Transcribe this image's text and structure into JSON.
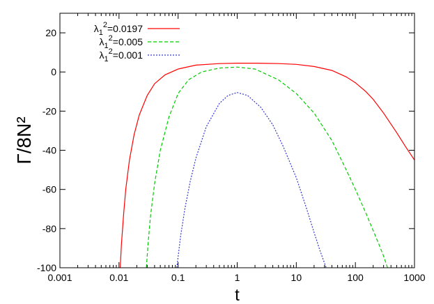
{
  "chart_data": {
    "type": "line",
    "xscale": "log",
    "xlim": [
      0.001,
      1000
    ],
    "ylim": [
      -100,
      30
    ],
    "xticks": [
      0.001,
      0.01,
      0.1,
      1,
      10,
      100,
      1000
    ],
    "xtick_labels": [
      "0.001",
      "0.01",
      "0.1",
      "1",
      "10",
      "100",
      "1000"
    ],
    "yticks": [
      -100,
      -80,
      -60,
      -40,
      -20,
      0,
      20
    ],
    "ytick_labels": [
      "-100",
      "-80",
      "-60",
      "-40",
      "-20",
      "0",
      "20"
    ],
    "xlabel": "t",
    "ylabel": "Γ/8N²",
    "grid": false,
    "legend_position": "top-left",
    "series": [
      {
        "name": "λ₁²=0.0197",
        "legend": {
          "base": "λ",
          "sub": "1",
          "sup": "2",
          "rest": "=0.0197"
        },
        "color": "#ff0000",
        "dash": "solid",
        "x": [
          0.0105,
          0.011,
          0.012,
          0.013,
          0.015,
          0.018,
          0.022,
          0.03,
          0.04,
          0.06,
          0.1,
          0.2,
          0.5,
          1,
          2,
          5,
          10,
          20,
          40,
          70,
          100,
          150,
          200,
          300,
          500,
          700,
          1000
        ],
        "y": [
          -100,
          -88,
          -72,
          -60,
          -45,
          -32,
          -22,
          -12,
          -6,
          -1.5,
          1.5,
          3.5,
          4.3,
          4.5,
          4.5,
          4.3,
          3.9,
          2.8,
          0.8,
          -2.5,
          -5.5,
          -10,
          -14,
          -21,
          -31,
          -38,
          -45
        ]
      },
      {
        "name": "λ₁²=0.005",
        "legend": {
          "base": "λ",
          "sub": "1",
          "sup": "2",
          "rest": "=0.005"
        },
        "color": "#00cc00",
        "dash": "5,3",
        "x": [
          0.029,
          0.031,
          0.034,
          0.04,
          0.05,
          0.07,
          0.1,
          0.15,
          0.25,
          0.5,
          1,
          2,
          5,
          10,
          20,
          40,
          70,
          100,
          150,
          200,
          250,
          300,
          350
        ],
        "y": [
          -100,
          -88,
          -74,
          -57,
          -40,
          -23,
          -11,
          -4,
          0,
          2,
          2.5,
          1.5,
          -4,
          -11,
          -21,
          -35,
          -50,
          -60,
          -72,
          -81,
          -88,
          -94,
          -100
        ]
      },
      {
        "name": "λ₁²=0.001",
        "legend": {
          "base": "λ",
          "sub": "1",
          "sup": "2",
          "rest": "=0.001"
        },
        "color": "#3333cc",
        "dash": "2,2",
        "x": [
          0.095,
          0.11,
          0.13,
          0.16,
          0.2,
          0.3,
          0.5,
          0.7,
          1,
          1.5,
          2.5,
          4,
          6,
          10,
          15,
          20,
          25,
          32
        ],
        "y": [
          -100,
          -84,
          -70,
          -56,
          -44,
          -28,
          -16,
          -12,
          -10.5,
          -12,
          -18,
          -27,
          -38,
          -54,
          -70,
          -82,
          -91,
          -100
        ]
      }
    ]
  }
}
